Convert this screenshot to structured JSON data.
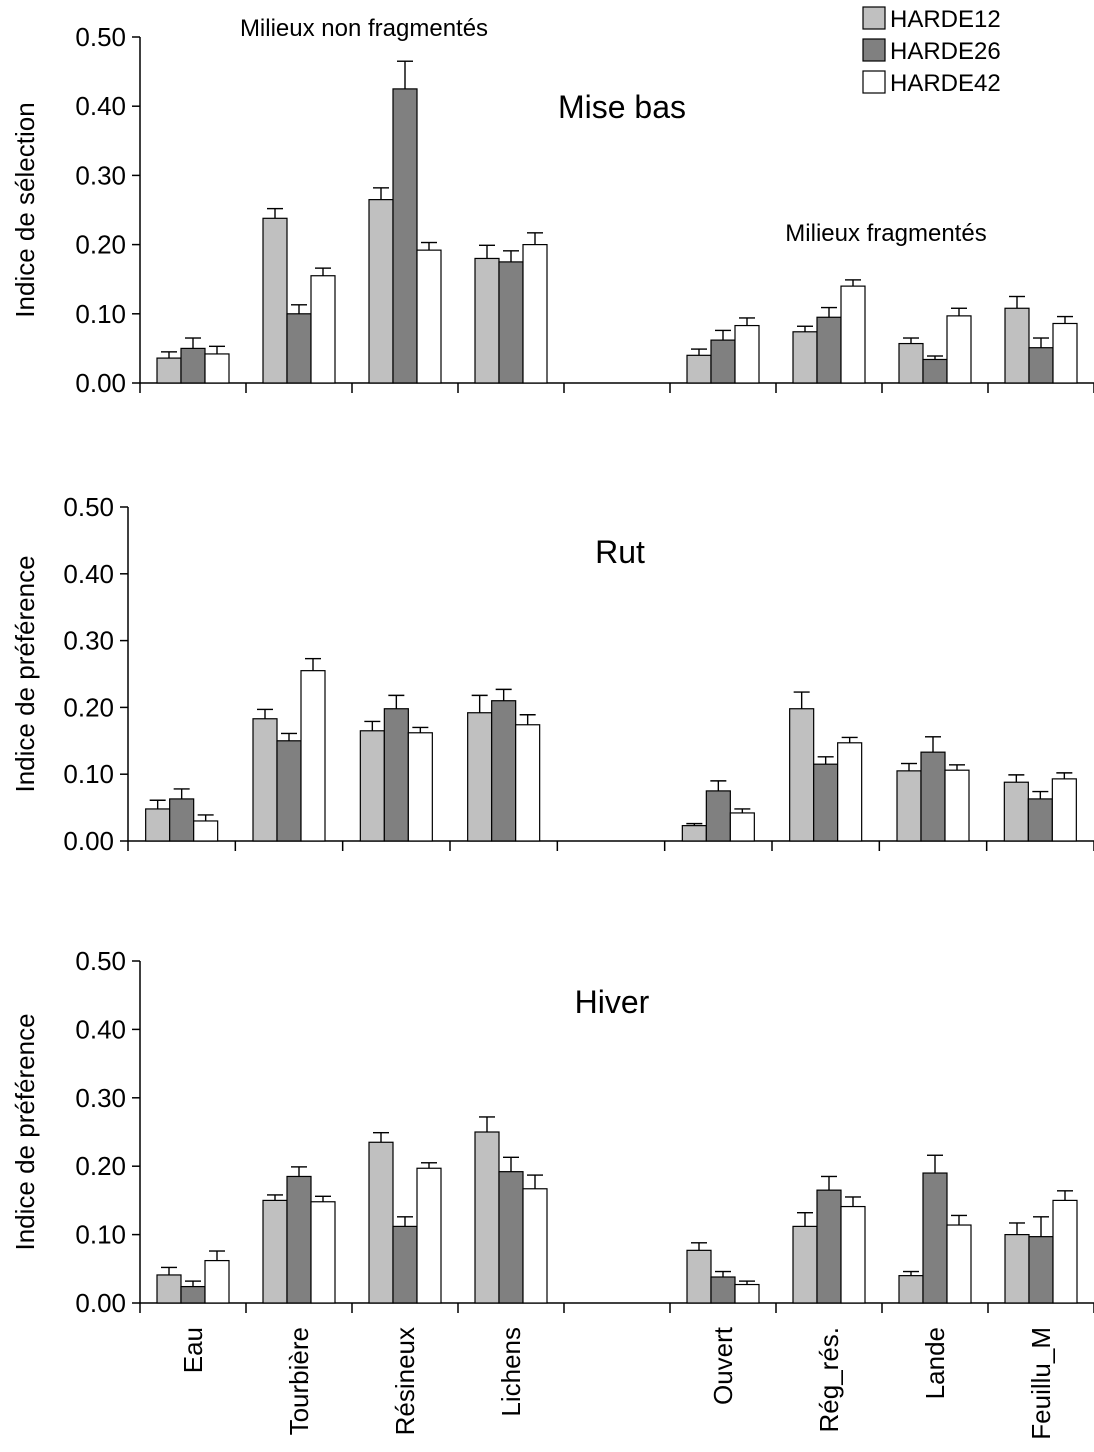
{
  "chart_data": [
    {
      "type": "bar",
      "title": "Mise bas",
      "ylabel": "Indice de sélection",
      "ylim": [
        0,
        0.5
      ],
      "yticks": [
        "0.00",
        "0.10",
        "0.20",
        "0.30",
        "0.40",
        "0.50"
      ],
      "annotations": [
        "Milieux non fragmentés",
        "Milieux fragmentés"
      ],
      "categories": [
        "Eau",
        "Tourbière",
        "Résineux",
        "Lichens",
        "",
        "Ouvert",
        "Rég_rés.",
        "Lande",
        "Feuillu_M"
      ],
      "series": [
        {
          "name": "HARDE12",
          "values": [
            0.036,
            0.238,
            0.265,
            0.18,
            null,
            0.04,
            0.074,
            0.057,
            0.108
          ],
          "errors": [
            0.009,
            0.014,
            0.017,
            0.019,
            null,
            0.009,
            0.008,
            0.008,
            0.017
          ]
        },
        {
          "name": "HARDE26",
          "values": [
            0.05,
            0.1,
            0.425,
            0.175,
            null,
            0.062,
            0.095,
            0.034,
            0.051
          ],
          "errors": [
            0.015,
            0.013,
            0.04,
            0.016,
            null,
            0.014,
            0.014,
            0.005,
            0.014
          ]
        },
        {
          "name": "HARDE42",
          "values": [
            0.042,
            0.155,
            0.192,
            0.2,
            null,
            0.083,
            0.14,
            0.097,
            0.086
          ],
          "errors": [
            0.011,
            0.011,
            0.011,
            0.017,
            null,
            0.011,
            0.009,
            0.011,
            0.01
          ]
        }
      ]
    },
    {
      "type": "bar",
      "title": "Rut",
      "ylabel": "Indice de préférence",
      "ylim": [
        0,
        0.5
      ],
      "yticks": [
        "0.00",
        "0.10",
        "0.20",
        "0.30",
        "0.40",
        "0.50"
      ],
      "categories": [
        "Eau",
        "Tourbière",
        "Résineux",
        "Lichens",
        "",
        "Ouvert",
        "Rég_rés.",
        "Lande",
        "Feuillu_M"
      ],
      "series": [
        {
          "name": "HARDE12",
          "values": [
            0.048,
            0.183,
            0.165,
            0.192,
            null,
            0.023,
            0.198,
            0.105,
            0.088
          ],
          "errors": [
            0.013,
            0.014,
            0.014,
            0.026,
            null,
            0.003,
            0.025,
            0.011,
            0.011
          ]
        },
        {
          "name": "HARDE26",
          "values": [
            0.063,
            0.15,
            0.198,
            0.21,
            null,
            0.075,
            0.115,
            0.133,
            0.063
          ],
          "errors": [
            0.015,
            0.011,
            0.02,
            0.017,
            null,
            0.015,
            0.011,
            0.023,
            0.011
          ]
        },
        {
          "name": "HARDE42",
          "values": [
            0.03,
            0.255,
            0.162,
            0.174,
            null,
            0.042,
            0.147,
            0.106,
            0.093
          ],
          "errors": [
            0.009,
            0.018,
            0.008,
            0.015,
            null,
            0.006,
            0.008,
            0.008,
            0.009
          ]
        }
      ]
    },
    {
      "type": "bar",
      "title": "Hiver",
      "ylabel": "Indice de préférence",
      "ylim": [
        0,
        0.5
      ],
      "yticks": [
        "0.00",
        "0.10",
        "0.20",
        "0.30",
        "0.40",
        "0.50"
      ],
      "categories": [
        "Eau",
        "Tourbière",
        "Résineux",
        "Lichens",
        "",
        "Ouvert",
        "Rég_rés.",
        "Lande",
        "Feuillu_M"
      ],
      "series": [
        {
          "name": "HARDE12",
          "values": [
            0.041,
            0.15,
            0.235,
            0.25,
            null,
            0.077,
            0.112,
            0.04,
            0.1
          ],
          "errors": [
            0.011,
            0.008,
            0.014,
            0.022,
            null,
            0.011,
            0.02,
            0.006,
            0.017
          ]
        },
        {
          "name": "HARDE26",
          "values": [
            0.024,
            0.185,
            0.112,
            0.192,
            null,
            0.038,
            0.165,
            0.19,
            0.097
          ],
          "errors": [
            0.008,
            0.014,
            0.014,
            0.021,
            null,
            0.008,
            0.02,
            0.026,
            0.029
          ]
        },
        {
          "name": "HARDE42",
          "values": [
            0.062,
            0.148,
            0.197,
            0.167,
            null,
            0.027,
            0.141,
            0.114,
            0.15
          ],
          "errors": [
            0.014,
            0.008,
            0.008,
            0.02,
            null,
            0.005,
            0.014,
            0.014,
            0.014
          ]
        }
      ]
    }
  ],
  "legend": {
    "items": [
      "HARDE12",
      "HARDE26",
      "HARDE42"
    ]
  },
  "colors": {
    "HARDE12": "#c0c0c0",
    "HARDE26": "#808080",
    "HARDE42": "#ffffff",
    "stroke": "#000000"
  }
}
